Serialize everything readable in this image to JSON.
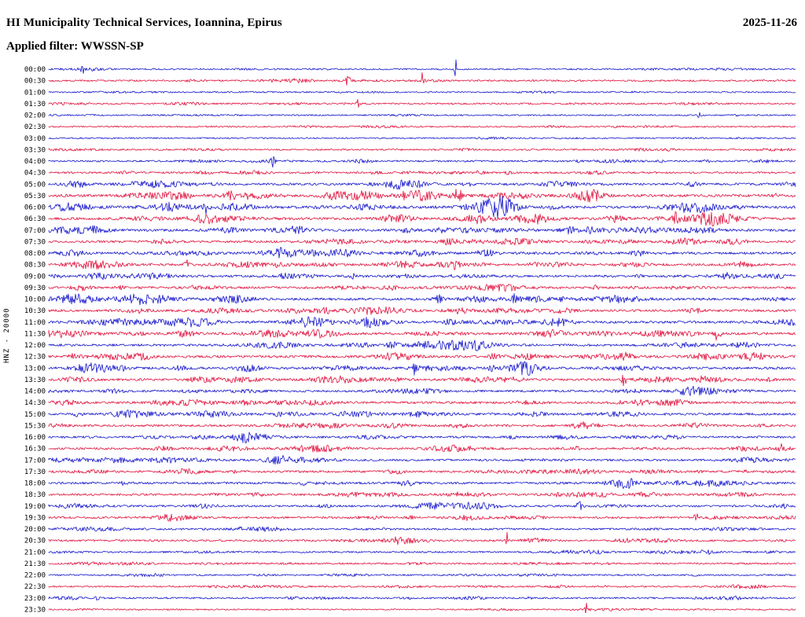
{
  "header": {
    "title": "HI Municipality Technical Services, Ioannina, Epirus",
    "date": "2025-11-26",
    "filter_label": "Applied filter: WWSSN-SP"
  },
  "y_axis_label": "HNZ - 20000",
  "colors": {
    "trace_blue": "#1414cc",
    "trace_red": "#e1103c",
    "text": "#000000",
    "background": "#ffffff"
  },
  "chart_data": {
    "type": "line",
    "subtype": "helicorder-seismogram",
    "title": "HI Municipality Technical Services, Ioannina, Epirus",
    "date": "2025-11-26",
    "filter": "WWSSN-SP",
    "station_channel": "HNZ",
    "gain": "20000",
    "row_interval_minutes": 30,
    "x_range_minutes": [
      0,
      30
    ],
    "grid": false,
    "legend": "none",
    "rows": [
      {
        "time": "00:00",
        "color": "blue",
        "activity": 0.15
      },
      {
        "time": "00:30",
        "color": "red",
        "activity": 0.2
      },
      {
        "time": "01:00",
        "color": "blue",
        "activity": 0.12
      },
      {
        "time": "01:30",
        "color": "red",
        "activity": 0.18
      },
      {
        "time": "02:00",
        "color": "blue",
        "activity": 0.12
      },
      {
        "time": "02:30",
        "color": "red",
        "activity": 0.12
      },
      {
        "time": "03:00",
        "color": "blue",
        "activity": 0.08
      },
      {
        "time": "03:30",
        "color": "red",
        "activity": 0.2
      },
      {
        "time": "04:00",
        "color": "blue",
        "activity": 0.25
      },
      {
        "time": "04:30",
        "color": "red",
        "activity": 0.3
      },
      {
        "time": "05:00",
        "color": "blue",
        "activity": 0.5
      },
      {
        "time": "05:30",
        "color": "red",
        "activity": 0.6
      },
      {
        "time": "06:00",
        "color": "blue",
        "activity": 0.65
      },
      {
        "time": "06:30",
        "color": "red",
        "activity": 0.6
      },
      {
        "time": "07:00",
        "color": "blue",
        "activity": 0.55
      },
      {
        "time": "07:30",
        "color": "red",
        "activity": 0.45
      },
      {
        "time": "08:00",
        "color": "blue",
        "activity": 0.55
      },
      {
        "time": "08:30",
        "color": "red",
        "activity": 0.5
      },
      {
        "time": "09:00",
        "color": "blue",
        "activity": 0.5
      },
      {
        "time": "09:30",
        "color": "red",
        "activity": 0.45
      },
      {
        "time": "10:00",
        "color": "blue",
        "activity": 0.55
      },
      {
        "time": "10:30",
        "color": "red",
        "activity": 0.5
      },
      {
        "time": "11:00",
        "color": "blue",
        "activity": 0.55
      },
      {
        "time": "11:30",
        "color": "red",
        "activity": 0.55
      },
      {
        "time": "12:00",
        "color": "blue",
        "activity": 0.5
      },
      {
        "time": "12:30",
        "color": "red",
        "activity": 0.55
      },
      {
        "time": "13:00",
        "color": "blue",
        "activity": 0.55
      },
      {
        "time": "13:30",
        "color": "red",
        "activity": 0.5
      },
      {
        "time": "14:00",
        "color": "blue",
        "activity": 0.4
      },
      {
        "time": "14:30",
        "color": "red",
        "activity": 0.45
      },
      {
        "time": "15:00",
        "color": "blue",
        "activity": 0.45
      },
      {
        "time": "15:30",
        "color": "red",
        "activity": 0.4
      },
      {
        "time": "16:00",
        "color": "blue",
        "activity": 0.4
      },
      {
        "time": "16:30",
        "color": "red",
        "activity": 0.38
      },
      {
        "time": "17:00",
        "color": "blue",
        "activity": 0.38
      },
      {
        "time": "17:30",
        "color": "red",
        "activity": 0.38
      },
      {
        "time": "18:00",
        "color": "blue",
        "activity": 0.42
      },
      {
        "time": "18:30",
        "color": "red",
        "activity": 0.38
      },
      {
        "time": "19:00",
        "color": "blue",
        "activity": 0.35
      },
      {
        "time": "19:30",
        "color": "red",
        "activity": 0.35
      },
      {
        "time": "20:00",
        "color": "blue",
        "activity": 0.32
      },
      {
        "time": "20:30",
        "color": "red",
        "activity": 0.28
      },
      {
        "time": "21:00",
        "color": "blue",
        "activity": 0.25
      },
      {
        "time": "21:30",
        "color": "red",
        "activity": 0.2
      },
      {
        "time": "22:00",
        "color": "blue",
        "activity": 0.18
      },
      {
        "time": "22:30",
        "color": "red",
        "activity": 0.18
      },
      {
        "time": "23:00",
        "color": "blue",
        "activity": 0.22
      },
      {
        "time": "23:30",
        "color": "red",
        "activity": 0.1
      }
    ],
    "events": [
      {
        "row": 0,
        "x": 0.045,
        "amp": 10,
        "w": 1.5
      },
      {
        "row": 0,
        "x": 0.545,
        "amp": 13,
        "w": 1.5
      },
      {
        "row": 1,
        "x": 0.4,
        "amp": 5,
        "w": 6
      },
      {
        "row": 1,
        "x": 0.5,
        "amp": 12,
        "w": 2
      },
      {
        "row": 3,
        "x": 0.415,
        "amp": 9,
        "w": 2.5
      },
      {
        "row": 4,
        "x": 0.87,
        "amp": 5,
        "w": 2
      },
      {
        "row": 8,
        "x": 0.3,
        "amp": 6,
        "w": 2.5
      },
      {
        "row": 11,
        "x": 0.548,
        "amp": 8,
        "w": 5
      },
      {
        "row": 12,
        "x": 0.21,
        "amp": 7,
        "w": 4
      },
      {
        "row": 13,
        "x": 0.84,
        "amp": 7,
        "w": 4
      },
      {
        "row": 17,
        "x": 0.185,
        "amp": 7,
        "w": 3
      },
      {
        "row": 20,
        "x": 0.625,
        "amp": 6,
        "w": 4
      },
      {
        "row": 23,
        "x": 0.895,
        "amp": 8,
        "w": 4
      },
      {
        "row": 26,
        "x": 0.49,
        "amp": 7,
        "w": 3
      },
      {
        "row": 27,
        "x": 0.77,
        "amp": 7,
        "w": 3
      },
      {
        "row": 32,
        "x": 0.62,
        "amp": 7,
        "w": 4
      },
      {
        "row": 33,
        "x": 0.98,
        "amp": 7,
        "w": 2
      },
      {
        "row": 35,
        "x": 0.93,
        "amp": 8,
        "w": 3
      },
      {
        "row": 36,
        "x": 0.34,
        "amp": 8,
        "w": 2.5
      },
      {
        "row": 38,
        "x": 0.71,
        "amp": 7,
        "w": 3
      },
      {
        "row": 39,
        "x": 0.866,
        "amp": 8,
        "w": 2.5
      },
      {
        "row": 41,
        "x": 0.613,
        "amp": 14,
        "w": 1.5
      },
      {
        "row": 46,
        "x": 0.065,
        "amp": 6,
        "w": 2
      },
      {
        "row": 46,
        "x": 0.48,
        "amp": 5,
        "w": 3
      },
      {
        "row": 47,
        "x": 0.72,
        "amp": 9,
        "w": 1.5
      }
    ]
  }
}
